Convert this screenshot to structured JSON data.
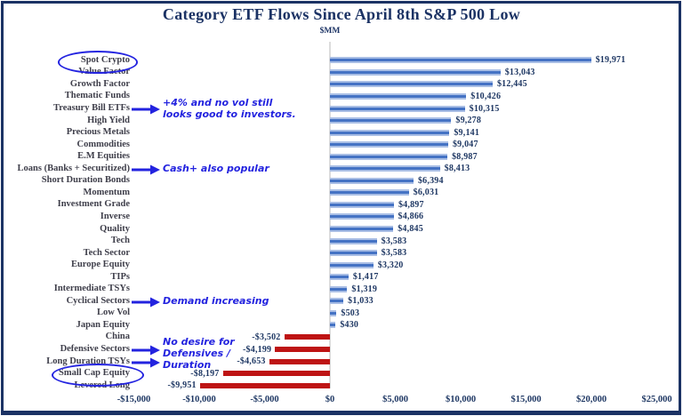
{
  "chart_data": {
    "type": "bar",
    "orientation": "horizontal",
    "title": "Category ETF Flows Since April 8th S&P 500 Low",
    "units": "$MM",
    "xlim": [
      -15000,
      25000
    ],
    "grid": "zero-baseline-only",
    "legend": "none",
    "x_ticks": [
      {
        "value": -15000,
        "label": "-$15,000"
      },
      {
        "value": -10000,
        "label": "-$10,000"
      },
      {
        "value": -5000,
        "label": "-$5,000"
      },
      {
        "value": 0,
        "label": "$0"
      },
      {
        "value": 5000,
        "label": "$5,000"
      },
      {
        "value": 10000,
        "label": "$10,000"
      },
      {
        "value": 15000,
        "label": "$15,000"
      },
      {
        "value": 20000,
        "label": "$20,000"
      },
      {
        "value": 25000,
        "label": "$25,000"
      }
    ],
    "bars": [
      {
        "category": "Spot Crypto",
        "value": 19971,
        "label": "$19,971",
        "circled": true
      },
      {
        "category": "Value Factor",
        "value": 13043,
        "label": "$13,043"
      },
      {
        "category": "Growth Factor",
        "value": 12445,
        "label": "$12,445"
      },
      {
        "category": "Thematic Funds",
        "value": 10426,
        "label": "$10,426"
      },
      {
        "category": "Treasury Bill ETFs",
        "value": 10315,
        "label": "$10,315"
      },
      {
        "category": "High Yield",
        "value": 9278,
        "label": "$9,278"
      },
      {
        "category": "Precious Metals",
        "value": 9141,
        "label": "$9,141"
      },
      {
        "category": "Commodities",
        "value": 9047,
        "label": "$9,047"
      },
      {
        "category": "E.M Equities",
        "value": 8987,
        "label": "$8,987"
      },
      {
        "category": "Loans (Banks + Securitized)",
        "value": 8413,
        "label": "$8,413"
      },
      {
        "category": "Short Duration Bonds",
        "value": 6394,
        "label": "$6,394"
      },
      {
        "category": "Momentum",
        "value": 6031,
        "label": "$6,031"
      },
      {
        "category": "Investment Grade",
        "value": 4897,
        "label": "$4,897"
      },
      {
        "category": "Inverse",
        "value": 4866,
        "label": "$4,866"
      },
      {
        "category": "Quality",
        "value": 4845,
        "label": "$4,845"
      },
      {
        "category": "Tech",
        "value": 3583,
        "label": "$3,583"
      },
      {
        "category": "Tech Sector",
        "value": 3583,
        "label": "$3,583"
      },
      {
        "category": "Europe Equity",
        "value": 3320,
        "label": "$3,320"
      },
      {
        "category": "TIPs",
        "value": 1417,
        "label": "$1,417"
      },
      {
        "category": "Intermediate TSYs",
        "value": 1319,
        "label": "$1,319"
      },
      {
        "category": "Cyclical Sectors",
        "value": 1033,
        "label": "$1,033"
      },
      {
        "category": "Low Vol",
        "value": 503,
        "label": "$503"
      },
      {
        "category": "Japan Equity",
        "value": 430,
        "label": "$430"
      },
      {
        "category": "China",
        "value": -3502,
        "label": "-$3,502"
      },
      {
        "category": "Defensive Sectors",
        "value": -4199,
        "label": "-$4,199"
      },
      {
        "category": "Long Duration TSYs",
        "value": -4653,
        "label": "-$4,653"
      },
      {
        "category": "Small Cap Equity",
        "value": -8197,
        "label": "-$8,197",
        "circled": true
      },
      {
        "category": "Levered Long",
        "value": -9951,
        "label": "-$9,951"
      }
    ],
    "annotations": [
      {
        "lines": [
          "+4% and no vol still",
          "looks good to investors."
        ],
        "anchor": "Treasury Bill ETFs",
        "dy": 0
      },
      {
        "lines": [
          "Cash+ also popular"
        ],
        "anchor": "Loans (Banks + Securitized)",
        "dy": 0
      },
      {
        "lines": [
          "Demand increasing"
        ],
        "anchor": "Cyclical Sectors",
        "dy": 0
      },
      {
        "lines": [
          "No desire for",
          "Defensives /",
          "Duration"
        ],
        "anchor": "Defensive Sectors",
        "dy": 4
      }
    ],
    "arrows": [
      "Treasury Bill ETFs",
      "Loans (Banks + Securitized)",
      "Cyclical Sectors",
      "Defensive Sectors",
      "Long Duration TSYs"
    ],
    "colors": {
      "positive_bar": "#4472C4",
      "positive_bar_edge": "#A9BEE5",
      "negative_bar": "#BE1414",
      "navy_text": "#1F3864",
      "category_text": "#3E3E4A",
      "annotation_blue": "#2323DF",
      "zero_gridline": "#DCDCDC",
      "frame_border": "#1B3264"
    }
  }
}
